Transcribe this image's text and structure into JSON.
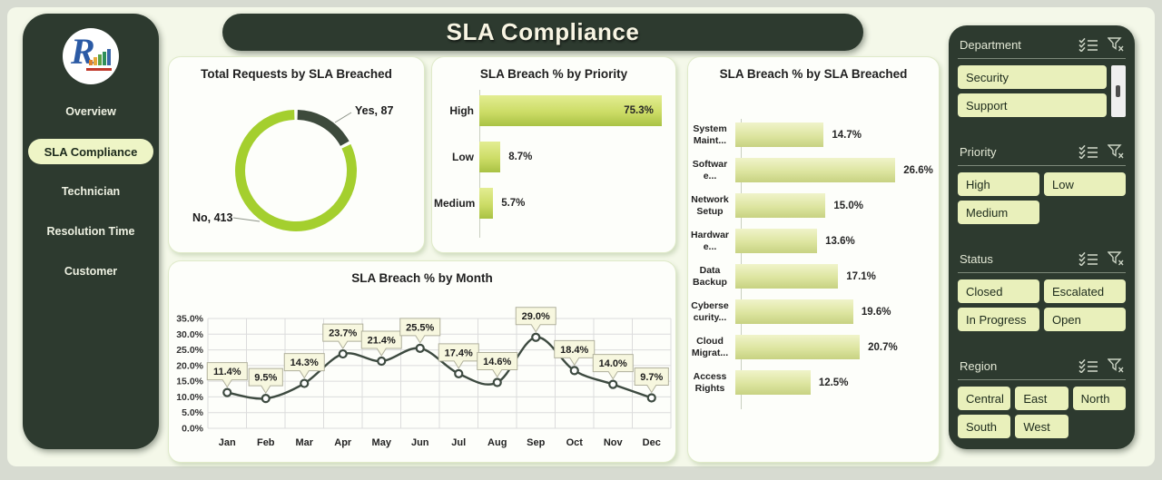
{
  "theme": {
    "dark_green": "#2d3a2f",
    "accent_green": "#a4cf2e",
    "segment_dark": "#3d4a3c",
    "button_bg": "#e9f0bb",
    "card_bg": "#fdfefa"
  },
  "header": {
    "title": "SLA Compliance"
  },
  "sidebar": {
    "logo": "R-analytics-logo",
    "nav": [
      {
        "label": "Overview",
        "active": false
      },
      {
        "label": "SLA Compliance",
        "active": true
      },
      {
        "label": "Technician",
        "active": false
      },
      {
        "label": "Resolution Time",
        "active": false
      },
      {
        "label": "Customer",
        "active": false
      }
    ]
  },
  "chart_data": [
    {
      "type": "pie",
      "subtype": "donut",
      "title": "Total Requests  by SLA Breached",
      "segments": [
        {
          "label": "Yes, 87",
          "name": "Yes",
          "value": 87,
          "color": "#3d4a3c"
        },
        {
          "label": "No, 413",
          "name": "No",
          "value": 413,
          "color": "#a4cf2e"
        }
      ]
    },
    {
      "type": "bar",
      "orientation": "horizontal",
      "title": "SLA Breach % by Priority",
      "categories": [
        "High",
        "Low",
        "Medium"
      ],
      "values": [
        75.3,
        8.7,
        5.7
      ],
      "value_suffix": "%",
      "xlim": [
        0,
        78
      ],
      "grid": false
    },
    {
      "type": "bar",
      "orientation": "horizontal",
      "title": "SLA Breach % by SLA Breached",
      "categories": [
        "System Maint...",
        "Software...",
        "Network Setup",
        "Hardware...",
        "Data Backup",
        "Cybersecurity...",
        "Cloud Migrat...",
        "Access Rights"
      ],
      "values": [
        14.7,
        26.6,
        15.0,
        13.6,
        17.1,
        19.6,
        20.7,
        12.5
      ],
      "value_suffix": "%",
      "xlim": [
        0,
        32
      ],
      "grid": false
    },
    {
      "type": "line",
      "title": "SLA Breach % by Month",
      "categories": [
        "Jan",
        "Feb",
        "Mar",
        "Apr",
        "May",
        "Jun",
        "Jul",
        "Aug",
        "Sep",
        "Oct",
        "Nov",
        "Dec"
      ],
      "values": [
        11.4,
        9.5,
        14.3,
        23.7,
        21.4,
        25.5,
        17.4,
        14.6,
        29.0,
        18.4,
        14.0,
        9.7
      ],
      "value_suffix": "%",
      "ylim": [
        0,
        35
      ],
      "ytick": 5,
      "grid": true,
      "data_labels": "callout-boxes"
    }
  ],
  "filters": {
    "icons": {
      "select_all": "select-all-icon",
      "clear_filter": "clear-filter-icon"
    },
    "panels": [
      {
        "title": "Department",
        "items": [
          "Security",
          "Support"
        ],
        "scrollbar": true
      },
      {
        "title": "Priority",
        "items": [
          "High",
          "Low",
          "Medium"
        ],
        "scrollbar": false
      },
      {
        "title": "Status",
        "items": [
          "Closed",
          "Escalated",
          "In Progress",
          "Open"
        ],
        "scrollbar": false
      },
      {
        "title": "Region",
        "items": [
          "Central",
          "East",
          "North",
          "South",
          "West"
        ],
        "scrollbar": false
      }
    ]
  }
}
